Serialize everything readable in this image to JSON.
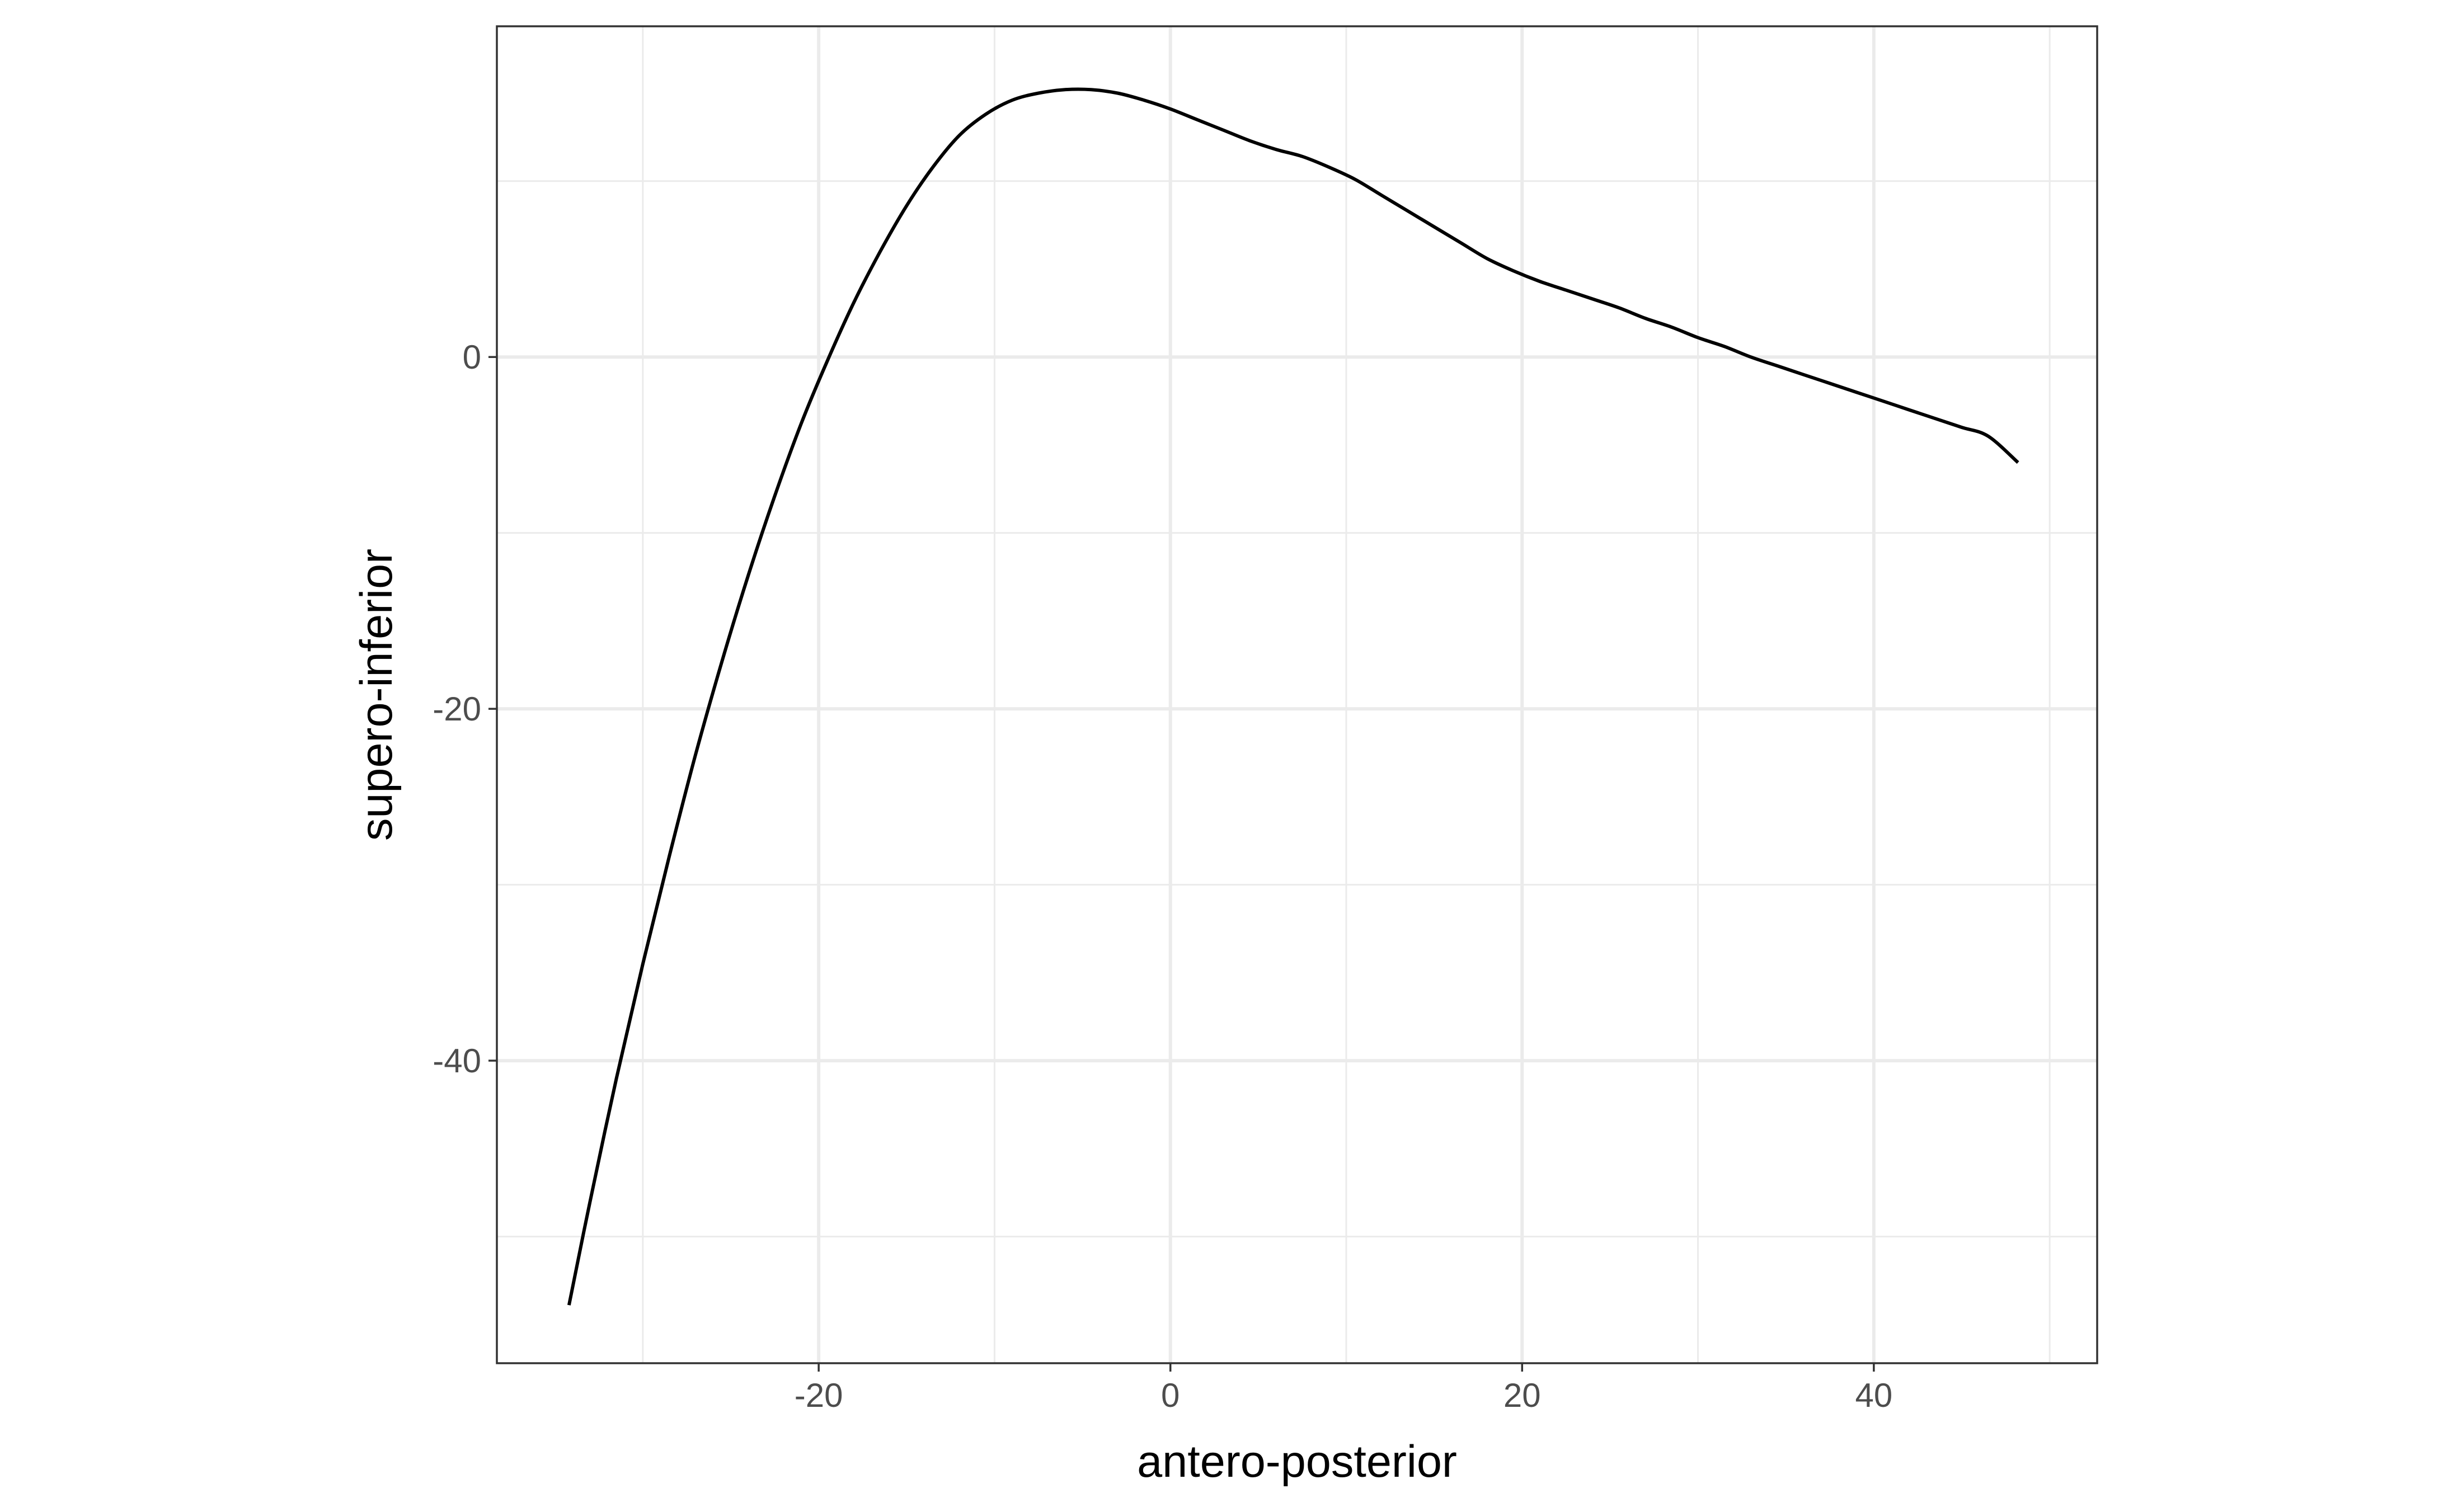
{
  "chart_data": {
    "type": "line",
    "title": "",
    "xlabel": "antero-posterior",
    "ylabel": "supero-inferior",
    "xlim": [
      -38.3,
      52.7
    ],
    "ylim": [
      -57.2,
      18.8
    ],
    "x_ticks": [
      -20,
      0,
      20,
      40
    ],
    "x_tick_labels": [
      "-20",
      "0",
      "20",
      "40"
    ],
    "x_minor_ticks": [
      -30,
      -10,
      10,
      30,
      50
    ],
    "y_ticks": [
      -40,
      -20,
      0
    ],
    "y_tick_labels": [
      "-40",
      "-20",
      "0"
    ],
    "y_minor_ticks": [
      -50,
      -30,
      -10,
      10
    ],
    "grid": true,
    "legend": "none",
    "colors": {
      "line": "#000000",
      "grid": "#ebebeb",
      "border": "#333333",
      "tick_label": "#4d4d4d",
      "background": "#ffffff"
    },
    "series": [
      {
        "x": [
          -34.2,
          -33.0,
          -31.5,
          -30.0,
          -28.5,
          -27.0,
          -25.5,
          -24.0,
          -22.5,
          -21.0,
          -19.5,
          -18.0,
          -16.5,
          -15.0,
          -13.5,
          -12.0,
          -10.5,
          -9.0,
          -7.5,
          -6.0,
          -4.5,
          -3.0,
          -1.5,
          0.0,
          1.5,
          3.0,
          4.5,
          6.0,
          7.5,
          9.0,
          10.5,
          12.0,
          13.5,
          15.0,
          16.5,
          18.0,
          19.5,
          21.0,
          22.5,
          24.0,
          25.5,
          27.0,
          28.5,
          30.0,
          31.5,
          33.0,
          34.5,
          36.0,
          37.5,
          39.0,
          40.5,
          42.0,
          43.5,
          45.0,
          46.5,
          48.2
        ],
        "y": [
          -53.9,
          -48.0,
          -41.0,
          -34.5,
          -28.4,
          -22.6,
          -17.3,
          -12.4,
          -7.9,
          -3.8,
          -0.2,
          3.1,
          6.0,
          8.6,
          10.8,
          12.6,
          13.8,
          14.6,
          15.0,
          15.2,
          15.2,
          15.0,
          14.6,
          14.1,
          13.5,
          12.9,
          12.3,
          11.8,
          11.4,
          10.8,
          10.1,
          9.2,
          8.3,
          7.4,
          6.5,
          5.6,
          4.9,
          4.3,
          3.8,
          3.3,
          2.8,
          2.2,
          1.7,
          1.1,
          0.6,
          0.0,
          -0.5,
          -1.0,
          -1.5,
          -2.0,
          -2.5,
          -3.0,
          -3.5,
          -4.0,
          -4.5,
          -6.0
        ]
      }
    ]
  }
}
